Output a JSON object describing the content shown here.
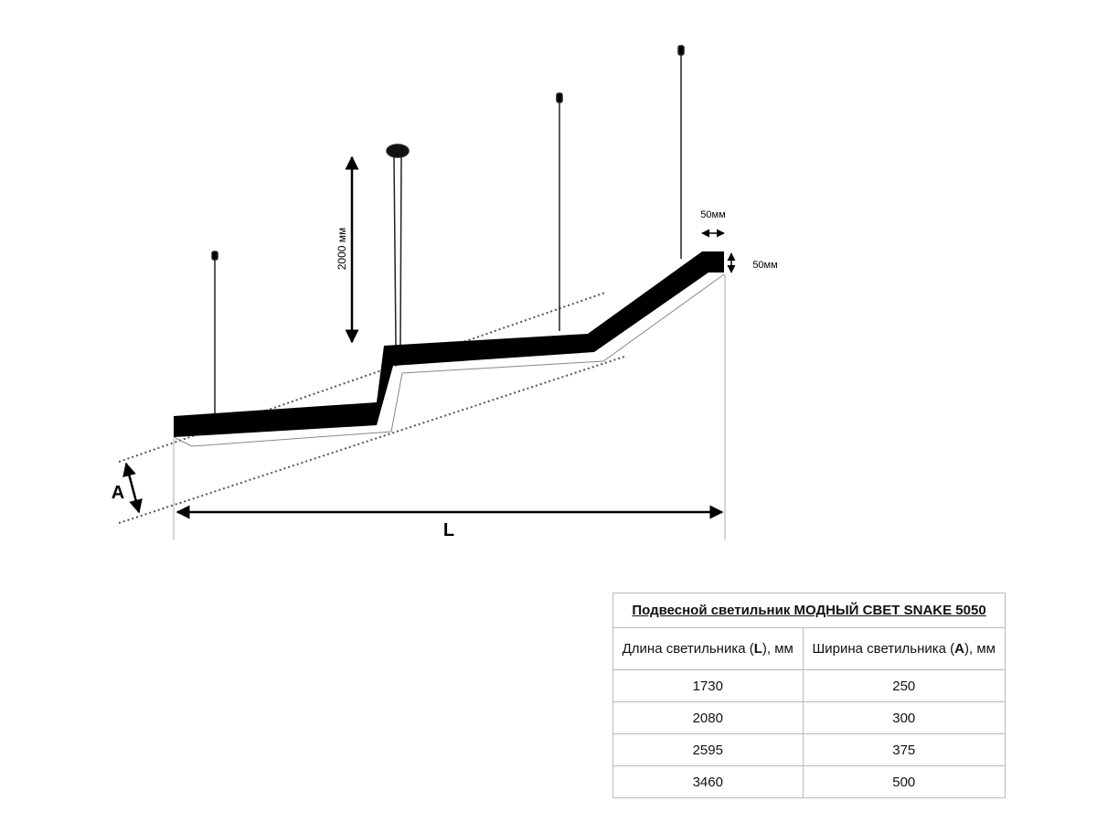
{
  "diagram": {
    "height_label": "2000 мм",
    "width_label": "50мм",
    "depth_label": "50мм",
    "a_label": "A",
    "l_label": "L"
  },
  "table": {
    "title": "Подвесной светильник МОДНЫЙ СВЕТ SNAKE 5050",
    "headers": [
      {
        "before": "Длина светильника (",
        "bold": "L",
        "after": "), мм"
      },
      {
        "before": "Ширина светильника (",
        "bold": "A",
        "after": "), мм"
      }
    ],
    "rows": [
      [
        "1730",
        "250"
      ],
      [
        "2080",
        "300"
      ],
      [
        "2595",
        "375"
      ],
      [
        "3460",
        "500"
      ]
    ]
  }
}
